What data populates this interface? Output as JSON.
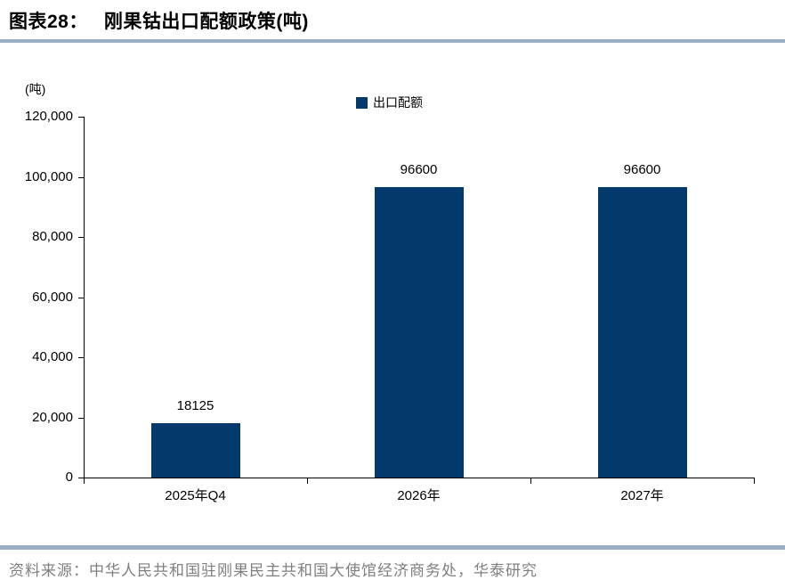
{
  "header": {
    "label": "图表28：",
    "title": "刚果钴出口配额政策(吨)"
  },
  "chart_data": {
    "type": "bar",
    "title": "刚果钴出口配额政策(吨)",
    "unit_label": "(吨)",
    "legend": [
      "出口配额"
    ],
    "legend_position": "top-center",
    "categories": [
      "2025年Q4",
      "2026年",
      "2027年"
    ],
    "values": [
      18125,
      96600,
      96600
    ],
    "data_labels": [
      "18125",
      "96600",
      "96600"
    ],
    "ylabel": "",
    "xlabel": "",
    "ylim": [
      0,
      120000
    ],
    "ytick_interval": 20000,
    "ytick_labels": [
      "0",
      "20,000",
      "40,000",
      "60,000",
      "80,000",
      "100,000",
      "120,000"
    ],
    "grid": false,
    "bar_color": "#04396B"
  },
  "footer": {
    "source": "资料来源：中华人民共和国驻刚果民主共和国大使馆经济商务处，华泰研究"
  },
  "colors": {
    "bar": "#04396B",
    "divider": "#9AAEC6",
    "axis": "#000000",
    "source_text": "#7F7F7F"
  }
}
